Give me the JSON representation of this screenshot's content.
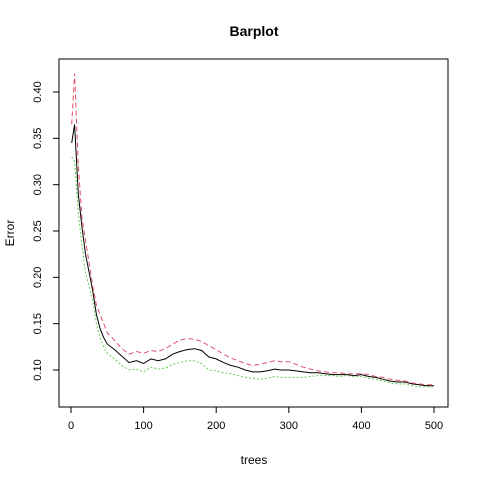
{
  "chart_data": {
    "type": "line",
    "title": "Barplot",
    "xlabel": "trees",
    "ylabel": "Error",
    "xlim": [
      0,
      500
    ],
    "ylim": [
      0.07,
      0.42
    ],
    "x_ticks": [
      0,
      100,
      200,
      300,
      400,
      500
    ],
    "y_ticks": [
      0.1,
      0.15,
      0.2,
      0.25,
      0.3,
      0.35,
      0.4
    ],
    "x_tick_labels": [
      "0",
      "100",
      "200",
      "300",
      "400",
      "500"
    ],
    "y_tick_labels": [
      "0.10",
      "0.15",
      "0.20",
      "0.25",
      "0.30",
      "0.35",
      "0.40"
    ],
    "grid": false,
    "legend": "none",
    "series": [
      {
        "color": "#000000",
        "dash": "solid",
        "x": [
          1,
          5,
          10,
          15,
          20,
          25,
          30,
          35,
          40,
          45,
          50,
          60,
          70,
          80,
          90,
          100,
          110,
          120,
          130,
          140,
          150,
          160,
          170,
          180,
          190,
          200,
          210,
          220,
          230,
          240,
          250,
          260,
          270,
          280,
          290,
          300,
          310,
          320,
          330,
          340,
          350,
          360,
          370,
          380,
          390,
          400,
          410,
          420,
          430,
          440,
          450,
          460,
          470,
          480,
          490,
          500
        ],
        "y": [
          0.345,
          0.365,
          0.29,
          0.255,
          0.225,
          0.205,
          0.185,
          0.16,
          0.145,
          0.135,
          0.128,
          0.122,
          0.115,
          0.108,
          0.11,
          0.107,
          0.112,
          0.11,
          0.112,
          0.117,
          0.12,
          0.122,
          0.123,
          0.121,
          0.114,
          0.112,
          0.108,
          0.105,
          0.103,
          0.1,
          0.098,
          0.098,
          0.099,
          0.101,
          0.1,
          0.1,
          0.099,
          0.098,
          0.097,
          0.097,
          0.096,
          0.095,
          0.095,
          0.095,
          0.094,
          0.095,
          0.093,
          0.092,
          0.09,
          0.088,
          0.087,
          0.087,
          0.085,
          0.084,
          0.083,
          0.083
        ]
      },
      {
        "color": "#DF536B",
        "dash": "dashed",
        "x": [
          1,
          5,
          10,
          15,
          20,
          25,
          30,
          35,
          40,
          45,
          50,
          60,
          70,
          80,
          90,
          100,
          110,
          120,
          130,
          140,
          150,
          160,
          170,
          180,
          190,
          200,
          210,
          220,
          230,
          240,
          250,
          260,
          270,
          280,
          290,
          300,
          310,
          320,
          330,
          340,
          350,
          360,
          370,
          380,
          390,
          400,
          410,
          420,
          430,
          440,
          450,
          460,
          470,
          480,
          490,
          500
        ],
        "y": [
          0.365,
          0.42,
          0.32,
          0.265,
          0.24,
          0.215,
          0.19,
          0.17,
          0.16,
          0.15,
          0.14,
          0.132,
          0.123,
          0.117,
          0.12,
          0.118,
          0.121,
          0.12,
          0.123,
          0.128,
          0.132,
          0.134,
          0.133,
          0.131,
          0.126,
          0.122,
          0.117,
          0.113,
          0.11,
          0.107,
          0.105,
          0.106,
          0.108,
          0.11,
          0.109,
          0.109,
          0.106,
          0.103,
          0.101,
          0.099,
          0.098,
          0.097,
          0.097,
          0.096,
          0.096,
          0.096,
          0.095,
          0.093,
          0.092,
          0.09,
          0.089,
          0.088,
          0.086,
          0.085,
          0.084,
          0.084
        ]
      },
      {
        "color": "#61D04F",
        "dash": "dotted",
        "x": [
          1,
          5,
          10,
          15,
          20,
          25,
          30,
          35,
          40,
          45,
          50,
          60,
          70,
          80,
          90,
          100,
          110,
          120,
          130,
          140,
          150,
          160,
          170,
          180,
          190,
          200,
          210,
          220,
          230,
          240,
          250,
          260,
          270,
          280,
          290,
          300,
          310,
          320,
          330,
          340,
          350,
          360,
          370,
          380,
          390,
          400,
          410,
          420,
          430,
          440,
          450,
          460,
          470,
          480,
          490,
          500
        ],
        "y": [
          0.33,
          0.325,
          0.27,
          0.235,
          0.205,
          0.19,
          0.175,
          0.15,
          0.135,
          0.125,
          0.118,
          0.112,
          0.105,
          0.1,
          0.101,
          0.098,
          0.103,
          0.101,
          0.102,
          0.106,
          0.108,
          0.11,
          0.11,
          0.107,
          0.1,
          0.099,
          0.097,
          0.096,
          0.094,
          0.092,
          0.091,
          0.09,
          0.091,
          0.093,
          0.092,
          0.092,
          0.092,
          0.092,
          0.093,
          0.094,
          0.094,
          0.094,
          0.093,
          0.094,
          0.093,
          0.093,
          0.091,
          0.09,
          0.088,
          0.086,
          0.085,
          0.085,
          0.083,
          0.082,
          0.082,
          0.082
        ]
      }
    ]
  }
}
